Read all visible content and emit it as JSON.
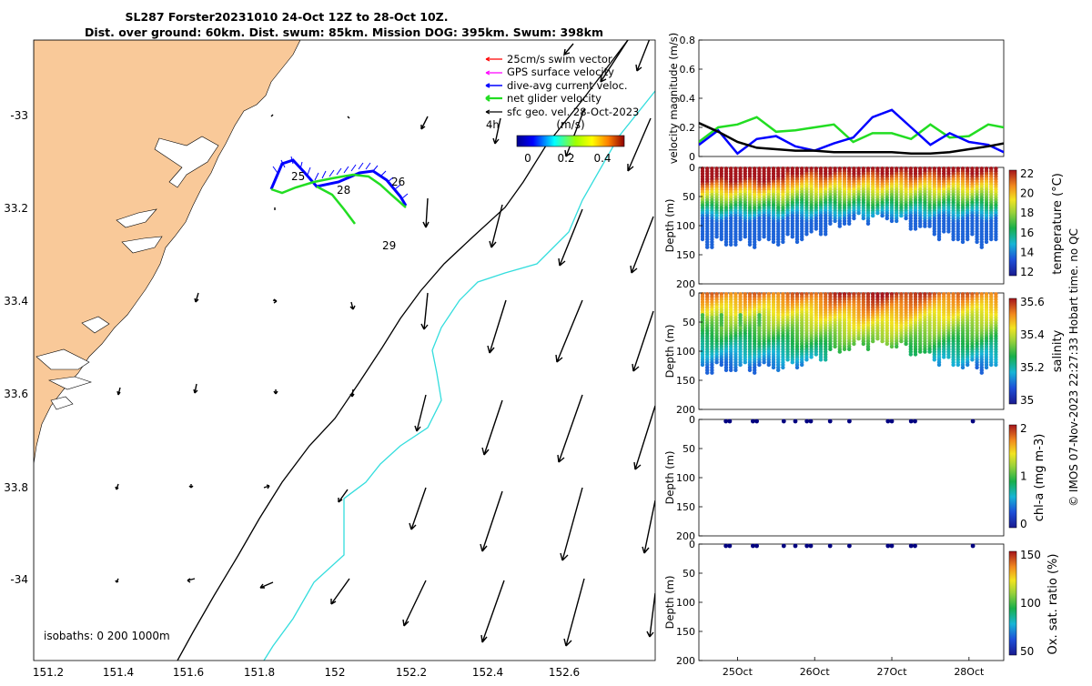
{
  "header": {
    "line1": "SL287 Forster20231010 24-Oct 12Z to 28-Oct 10Z.",
    "line2": "Dist. over ground: 60km. Dist. swum: 85km. Mission DOG: 395km. Swum: 398km"
  },
  "colors": {
    "land": "#F9C999",
    "coast_edge": "#000000",
    "isobath_200": "#000000",
    "isobath_1000": "#33DDDD",
    "swim_vector": "#FF0000",
    "gps_velocity": "#FF00FF",
    "dive_avg": "#0000FF",
    "net_glider": "#00DD00",
    "sfc_geo": "#000000",
    "chl_ox_points": "#000080"
  },
  "map": {
    "legend": {
      "items": [
        {
          "label": "25cm/s swim vector",
          "color": "#FF0000"
        },
        {
          "label": "GPS surface velocity",
          "color": "#FF00FF"
        },
        {
          "label": "dive-avg current veloc.",
          "color": "#0000FF"
        },
        {
          "label": "net glider velocity",
          "color": "#00DD00"
        },
        {
          "label": "sfc geo. vel. 28-Oct-2023",
          "color": "#000000"
        }
      ],
      "time_label": "4h"
    },
    "colorbar": {
      "title": "(m/s)",
      "ticks": [
        "0",
        "0.2",
        "0.4"
      ]
    },
    "day_labels": [
      "25",
      "26",
      "28",
      "29"
    ],
    "isobath_text": "isobaths: 0   200  1000m",
    "x_ticks": [
      "151.2",
      "151.4",
      "151.6",
      "151.8",
      "152",
      "152.2",
      "152.4",
      "152.6"
    ],
    "y_ticks": [
      "-33",
      "33.2",
      "33.4",
      "33.6",
      "33.8",
      "-34"
    ]
  },
  "chart_data": [
    {
      "type": "line",
      "title": "",
      "ylabel": "velocity magnitude (m/s)",
      "ylim": [
        0,
        0.8
      ],
      "y_ticks": [
        "0",
        "0.2",
        "0.4",
        "0.6",
        "0.8"
      ],
      "x_days": [
        24.5,
        24.75,
        25.0,
        25.25,
        25.5,
        25.75,
        26.0,
        26.25,
        26.5,
        26.75,
        27.0,
        27.25,
        27.5,
        27.75,
        28.0,
        28.25,
        28.45
      ],
      "series": [
        {
          "name": "net glider velocity",
          "color": "#22DD22",
          "values": [
            0.1,
            0.2,
            0.22,
            0.27,
            0.17,
            0.18,
            0.2,
            0.22,
            0.1,
            0.16,
            0.16,
            0.12,
            0.22,
            0.13,
            0.14,
            0.22,
            0.2
          ]
        },
        {
          "name": "dive-avg current veloc.",
          "color": "#0000FF",
          "values": [
            0.08,
            0.18,
            0.02,
            0.12,
            0.14,
            0.07,
            0.04,
            0.09,
            0.13,
            0.27,
            0.32,
            0.2,
            0.08,
            0.16,
            0.1,
            0.08,
            0.03
          ]
        },
        {
          "name": "sfc geo. vel.",
          "color": "#000000",
          "values": [
            0.23,
            0.17,
            0.1,
            0.06,
            0.05,
            0.04,
            0.04,
            0.03,
            0.03,
            0.03,
            0.03,
            0.02,
            0.02,
            0.03,
            0.05,
            0.07,
            0.09
          ]
        }
      ]
    },
    {
      "type": "heatmap",
      "ylabel": "Depth (m)",
      "colorbar_label": "temperature (°C)",
      "colorbar_ticks": [
        "22",
        "20",
        "18",
        "16",
        "14",
        "12"
      ],
      "ylim": [
        0,
        200
      ],
      "y_ticks": [
        "0",
        "50",
        "100",
        "150",
        "200"
      ],
      "surface_value": 21.5,
      "deep_value": 14.5
    },
    {
      "type": "heatmap",
      "ylabel": "Depth (m)",
      "colorbar_label": "salinity",
      "colorbar_ticks": [
        "35.6",
        "35.4",
        "35.2",
        "35"
      ],
      "ylim": [
        0,
        200
      ],
      "y_ticks": [
        "0",
        "50",
        "100",
        "150",
        "200"
      ],
      "surface_value": 35.55,
      "deep_value": 35.25
    },
    {
      "type": "scatter",
      "ylabel": "Depth (m)",
      "colorbar_label": "chl-a (mg m-3)",
      "colorbar_ticks": [
        "2",
        "1",
        "0"
      ],
      "ylim": [
        0,
        200
      ],
      "y_ticks": [
        "0",
        "50",
        "100",
        "150",
        "200"
      ],
      "point_days": [
        24.85,
        24.9,
        25.2,
        25.25,
        25.6,
        25.75,
        25.9,
        25.95,
        26.2,
        26.45,
        26.95,
        27.0,
        27.25,
        27.3,
        28.05
      ],
      "point_depth_m": 0
    },
    {
      "type": "scatter",
      "ylabel": "Depth (m)",
      "colorbar_label": "Ox. sat. ratio (%)",
      "colorbar_ticks": [
        "150",
        "100",
        "50"
      ],
      "ylim": [
        0,
        200
      ],
      "y_ticks": [
        "0",
        "50",
        "100",
        "150",
        "200"
      ],
      "x_ticks": [
        "25Oct",
        "26Oct",
        "27Oct",
        "28Oct"
      ],
      "point_days": [
        24.85,
        24.9,
        25.2,
        25.25,
        25.6,
        25.75,
        25.9,
        25.95,
        26.2,
        26.45,
        26.95,
        27.0,
        27.25,
        27.3,
        28.05
      ],
      "point_depth_m": 0
    }
  ],
  "footer": {
    "credit": "© IMOS 07-Nov-2023 22:27:33 Hobart time. no QC"
  }
}
